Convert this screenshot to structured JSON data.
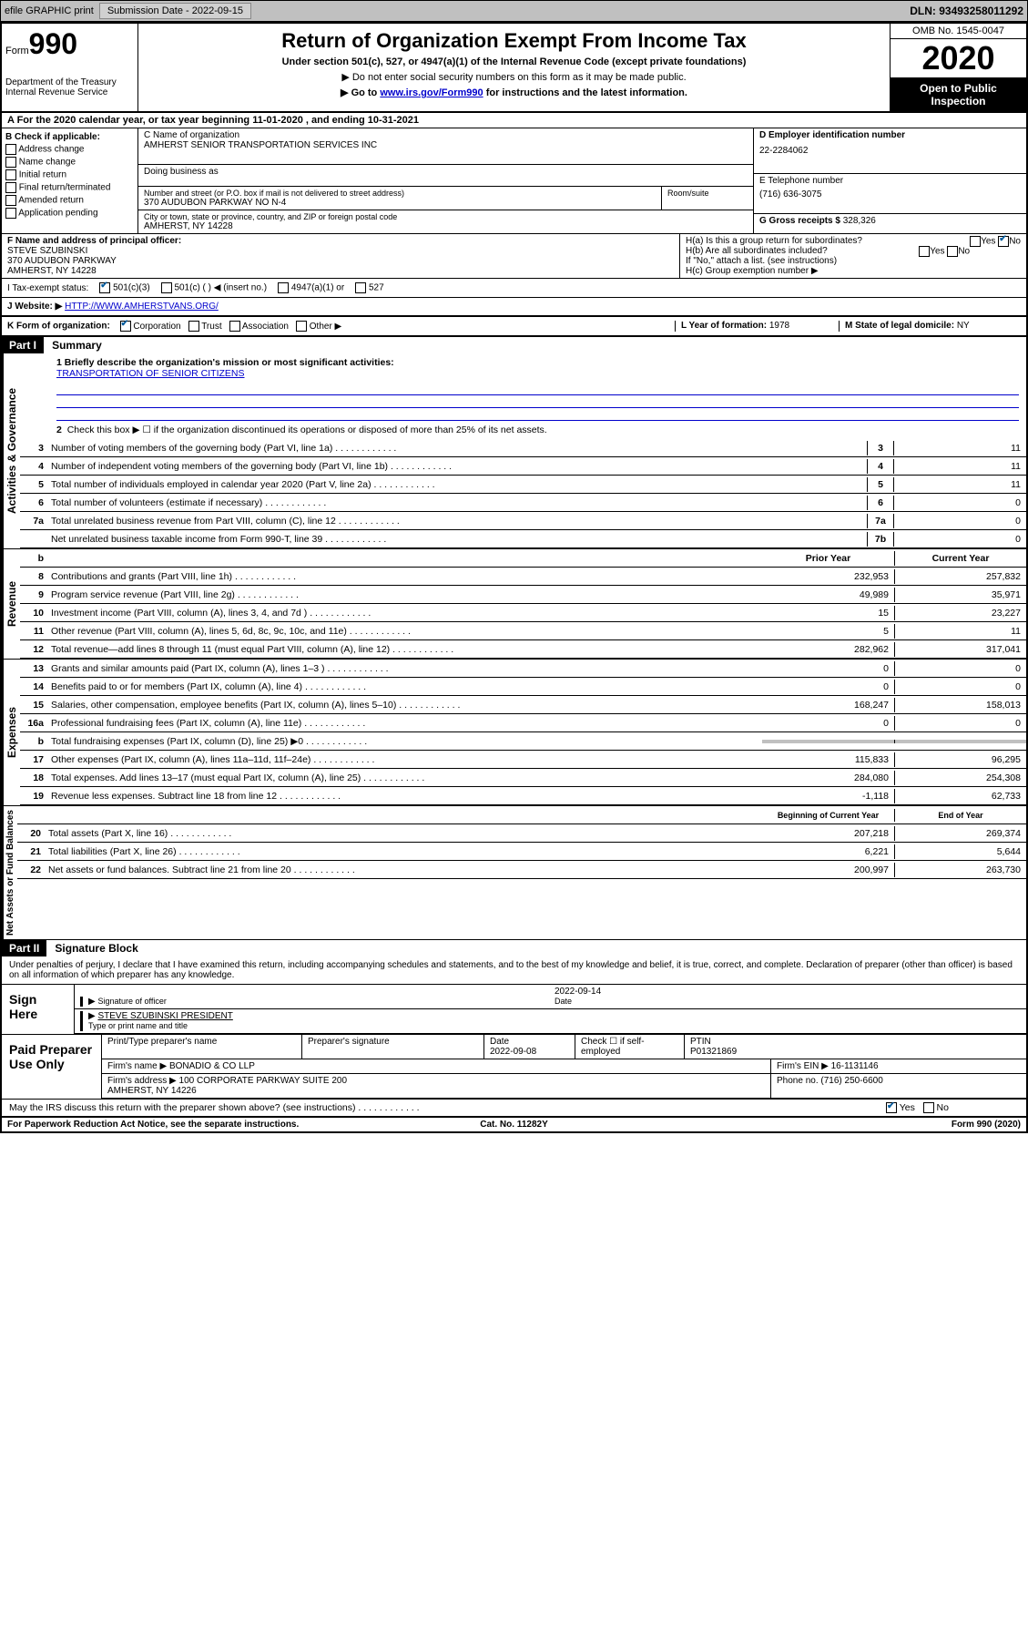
{
  "topbar": {
    "efile": "efile GRAPHIC print",
    "submission_label": "Submission Date - 2022-09-15",
    "dln": "DLN: 93493258011292"
  },
  "header": {
    "form_prefix": "Form",
    "form_number": "990",
    "dept": "Department of the Treasury\nInternal Revenue Service",
    "title": "Return of Organization Exempt From Income Tax",
    "subtitle": "Under section 501(c), 527, or 4947(a)(1) of the Internal Revenue Code (except private foundations)",
    "warn1": "▶ Do not enter social security numbers on this form as it may be made public.",
    "warn2_pre": "▶ Go to ",
    "warn2_link": "www.irs.gov/Form990",
    "warn2_post": " for instructions and the latest information.",
    "omb": "OMB No. 1545-0047",
    "year": "2020",
    "inspect": "Open to Public Inspection"
  },
  "row_a": "A For the 2020 calendar year, or tax year beginning 11-01-2020   , and ending 10-31-2021",
  "box_b": {
    "title": "B Check if applicable:",
    "opts": [
      "Address change",
      "Name change",
      "Initial return",
      "Final return/terminated",
      "Amended return",
      "Application pending"
    ]
  },
  "box_c": {
    "name_label": "C Name of organization",
    "name": "AMHERST SENIOR TRANSPORTATION SERVICES INC",
    "dba_label": "Doing business as",
    "dba": "",
    "addr_label": "Number and street (or P.O. box if mail is not delivered to street address)",
    "addr": "370 AUDUBON PARKWAY NO N-4",
    "room_label": "Room/suite",
    "city_label": "City or town, state or province, country, and ZIP or foreign postal code",
    "city": "AMHERST, NY  14228"
  },
  "box_d": {
    "ein_label": "D Employer identification number",
    "ein": "22-2284062",
    "phone_label": "E Telephone number",
    "phone": "(716) 636-3075",
    "gross_label": "G Gross receipts $",
    "gross": "328,326"
  },
  "box_f": {
    "label": "F  Name and address of principal officer:",
    "name": "STEVE SZUBINSKI",
    "addr1": "370 AUDUBON PARKWAY",
    "addr2": "AMHERST, NY  14228"
  },
  "box_h": {
    "a_label": "H(a)  Is this a group return for subordinates?",
    "a_val": "No",
    "b_label": "H(b)  Are all subordinates included?",
    "b_note": "If \"No,\" attach a list. (see instructions)",
    "c_label": "H(c)  Group exemption number ▶"
  },
  "status": {
    "label": "I   Tax-exempt status:",
    "opt1": "501(c)(3)",
    "opt2": "501(c) (   ) ◀ (insert no.)",
    "opt3": "4947(a)(1) or",
    "opt4": "527"
  },
  "website": {
    "label": "J  Website: ▶",
    "url": "HTTP://WWW.AMHERSTVANS.ORG/"
  },
  "row_k": {
    "k": "K Form of organization:",
    "opts": [
      "Corporation",
      "Trust",
      "Association",
      "Other ▶"
    ],
    "l_label": "L Year of formation:",
    "l_val": "1978",
    "m_label": "M State of legal domicile:",
    "m_val": "NY"
  },
  "part1": {
    "header": "Part I",
    "title": "Summary",
    "q1_label": "1  Briefly describe the organization's mission or most significant activities:",
    "q1_val": "TRANSPORTATION OF SENIOR CITIZENS",
    "q2": "Check this box ▶ ☐  if the organization discontinued its operations or disposed of more than 25% of its net assets.",
    "lines_gov": [
      {
        "n": "3",
        "d": "Number of voting members of the governing body (Part VI, line 1a)",
        "b": "3",
        "v": "11"
      },
      {
        "n": "4",
        "d": "Number of independent voting members of the governing body (Part VI, line 1b)",
        "b": "4",
        "v": "11"
      },
      {
        "n": "5",
        "d": "Total number of individuals employed in calendar year 2020 (Part V, line 2a)",
        "b": "5",
        "v": "11"
      },
      {
        "n": "6",
        "d": "Total number of volunteers (estimate if necessary)",
        "b": "6",
        "v": "0"
      },
      {
        "n": "7a",
        "d": "Total unrelated business revenue from Part VIII, column (C), line 12",
        "b": "7a",
        "v": "0"
      },
      {
        "n": "",
        "d": "Net unrelated business taxable income from Form 990-T, line 39",
        "b": "7b",
        "v": "0"
      }
    ],
    "col_hdr": {
      "prior": "Prior Year",
      "current": "Current Year"
    },
    "lines_rev": [
      {
        "n": "8",
        "d": "Contributions and grants (Part VIII, line 1h)",
        "p": "232,953",
        "c": "257,832"
      },
      {
        "n": "9",
        "d": "Program service revenue (Part VIII, line 2g)",
        "p": "49,989",
        "c": "35,971"
      },
      {
        "n": "10",
        "d": "Investment income (Part VIII, column (A), lines 3, 4, and 7d )",
        "p": "15",
        "c": "23,227"
      },
      {
        "n": "11",
        "d": "Other revenue (Part VIII, column (A), lines 5, 6d, 8c, 9c, 10c, and 11e)",
        "p": "5",
        "c": "11"
      },
      {
        "n": "12",
        "d": "Total revenue—add lines 8 through 11 (must equal Part VIII, column (A), line 12)",
        "p": "282,962",
        "c": "317,041"
      }
    ],
    "lines_exp": [
      {
        "n": "13",
        "d": "Grants and similar amounts paid (Part IX, column (A), lines 1–3 )",
        "p": "0",
        "c": "0"
      },
      {
        "n": "14",
        "d": "Benefits paid to or for members (Part IX, column (A), line 4)",
        "p": "0",
        "c": "0"
      },
      {
        "n": "15",
        "d": "Salaries, other compensation, employee benefits (Part IX, column (A), lines 5–10)",
        "p": "168,247",
        "c": "158,013"
      },
      {
        "n": "16a",
        "d": "Professional fundraising fees (Part IX, column (A), line 11e)",
        "p": "0",
        "c": "0"
      },
      {
        "n": "b",
        "d": "Total fundraising expenses (Part IX, column (D), line 25) ▶0",
        "p": "",
        "c": "",
        "gray": true
      },
      {
        "n": "17",
        "d": "Other expenses (Part IX, column (A), lines 11a–11d, 11f–24e)",
        "p": "115,833",
        "c": "96,295"
      },
      {
        "n": "18",
        "d": "Total expenses. Add lines 13–17 (must equal Part IX, column (A), line 25)",
        "p": "284,080",
        "c": "254,308"
      },
      {
        "n": "19",
        "d": "Revenue less expenses. Subtract line 18 from line 12",
        "p": "-1,118",
        "c": "62,733"
      }
    ],
    "col_hdr2": {
      "prior": "Beginning of Current Year",
      "current": "End of Year"
    },
    "lines_net": [
      {
        "n": "20",
        "d": "Total assets (Part X, line 16)",
        "p": "207,218",
        "c": "269,374"
      },
      {
        "n": "21",
        "d": "Total liabilities (Part X, line 26)",
        "p": "6,221",
        "c": "5,644"
      },
      {
        "n": "22",
        "d": "Net assets or fund balances. Subtract line 21 from line 20",
        "p": "200,997",
        "c": "263,730"
      }
    ],
    "vert_labels": {
      "gov": "Activities & Governance",
      "rev": "Revenue",
      "exp": "Expenses",
      "net": "Net Assets or Fund Balances"
    }
  },
  "part2": {
    "header": "Part II",
    "title": "Signature Block",
    "decl": "Under penalties of perjury, I declare that I have examined this return, including accompanying schedules and statements, and to the best of my knowledge and belief, it is true, correct, and complete. Declaration of preparer (other than officer) is based on all information of which preparer has any knowledge.",
    "sign_here": "Sign Here",
    "sig_officer": "Signature of officer",
    "sig_date": "2022-09-14",
    "date_label": "Date",
    "officer_name": "STEVE SZUBINSKI  PRESIDENT",
    "type_label": "Type or print name and title",
    "paid": "Paid Preparer Use Only",
    "prep_hdr": {
      "name": "Print/Type preparer's name",
      "sig": "Preparer's signature",
      "date": "Date\n2022-09-08",
      "check": "Check ☐ if self-employed",
      "ptin": "PTIN\nP01321869"
    },
    "firm_name_label": "Firm's name   ▶",
    "firm_name": "BONADIO & CO LLP",
    "firm_ein_label": "Firm's EIN ▶",
    "firm_ein": "16-1131146",
    "firm_addr_label": "Firm's address ▶",
    "firm_addr": "100 CORPORATE PARKWAY SUITE 200\nAMHERST, NY  14226",
    "firm_phone_label": "Phone no.",
    "firm_phone": "(716) 250-6600",
    "discuss": "May the IRS discuss this return with the preparer shown above? (see instructions)",
    "discuss_val": "Yes"
  },
  "footer": {
    "left": "For Paperwork Reduction Act Notice, see the separate instructions.",
    "mid": "Cat. No. 11282Y",
    "right": "Form 990 (2020)"
  }
}
